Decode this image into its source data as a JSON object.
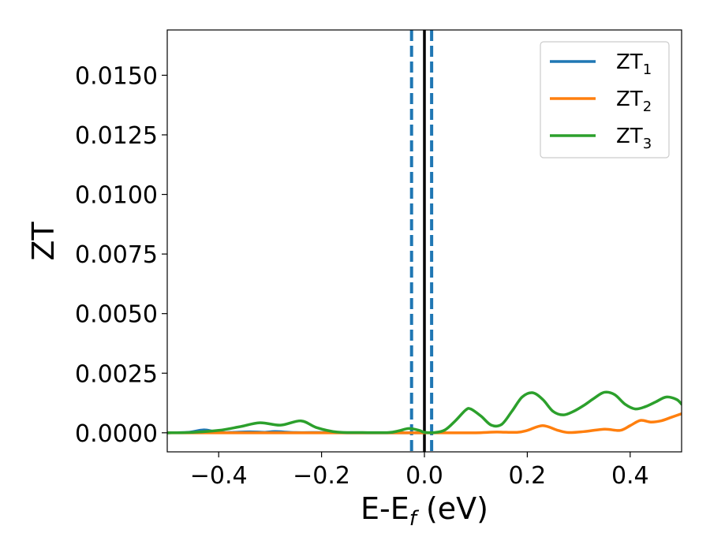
{
  "chart_data": {
    "type": "line",
    "xlabel_main": "E-E",
    "xlabel_sub": "f",
    "xlabel_unit": " (eV)",
    "ylabel": "ZT",
    "xlim": [
      -0.5,
      0.5
    ],
    "ylim": [
      -0.0008,
      0.0169
    ],
    "xticks": [
      -0.4,
      -0.2,
      0.0,
      0.2,
      0.4
    ],
    "xtick_labels": [
      "−0.4",
      "−0.2",
      "0.0",
      "0.2",
      "0.4"
    ],
    "yticks": [
      0.0,
      0.0025,
      0.005,
      0.0075,
      0.01,
      0.0125,
      0.015
    ],
    "ytick_labels": [
      "0.0000",
      "0.0025",
      "0.0050",
      "0.0075",
      "0.0100",
      "0.0125",
      "0.0150"
    ],
    "grid": false,
    "legend_position": "top-right",
    "vlines": [
      {
        "x": -0.025,
        "style": "dashed",
        "color": "#1f77b4"
      },
      {
        "x": 0.0,
        "style": "solid",
        "color": "#000000"
      },
      {
        "x": 0.014,
        "style": "dashed",
        "color": "#1f77b4"
      }
    ],
    "series": [
      {
        "name": "ZT",
        "sub": "1",
        "color": "#1f77b4",
        "x": [
          -0.5,
          -0.46,
          -0.43,
          -0.41,
          -0.39,
          -0.37,
          -0.34,
          -0.31,
          -0.29,
          -0.25,
          -0.2,
          -0.15,
          -0.1,
          -0.05,
          0.0
        ],
        "y": [
          0.0,
          2e-05,
          0.00012,
          6e-05,
          1e-05,
          2e-05,
          4e-05,
          2e-05,
          5e-05,
          1e-05,
          1e-05,
          0.0,
          0.0,
          0.0,
          0.0
        ]
      },
      {
        "name": "ZT",
        "sub": "2",
        "color": "#ff7f0e",
        "x": [
          -0.5,
          -0.3,
          -0.1,
          0.0,
          0.05,
          0.1,
          0.14,
          0.18,
          0.2,
          0.23,
          0.26,
          0.28,
          0.31,
          0.35,
          0.38,
          0.4,
          0.42,
          0.44,
          0.46,
          0.48,
          0.5
        ],
        "y": [
          0.0,
          0.0,
          0.0,
          0.0,
          0.0,
          0.0,
          3e-05,
          2e-05,
          0.0001,
          0.0003,
          0.0001,
          1e-05,
          5e-05,
          0.00015,
          0.0001,
          0.0003,
          0.00052,
          0.00045,
          0.0005,
          0.00065,
          0.0008
        ]
      },
      {
        "name": "ZT",
        "sub": "3",
        "color": "#2ca02c",
        "x": [
          -0.5,
          -0.45,
          -0.4,
          -0.36,
          -0.32,
          -0.28,
          -0.24,
          -0.21,
          -0.17,
          -0.12,
          -0.07,
          -0.05,
          -0.03,
          -0.01,
          0.0,
          0.02,
          0.04,
          0.06,
          0.08,
          0.09,
          0.11,
          0.13,
          0.15,
          0.17,
          0.19,
          0.21,
          0.23,
          0.25,
          0.27,
          0.29,
          0.31,
          0.33,
          0.35,
          0.37,
          0.39,
          0.41,
          0.43,
          0.45,
          0.47,
          0.49,
          0.5
        ],
        "y": [
          0.0,
          2e-05,
          0.0001,
          0.00025,
          0.00042,
          0.00032,
          0.0005,
          0.00022,
          3e-05,
          1e-05,
          1e-05,
          8e-05,
          0.00018,
          0.0001,
          2e-05,
          1e-05,
          0.00012,
          0.0005,
          0.00095,
          0.001,
          0.0007,
          0.00032,
          0.00035,
          0.0009,
          0.0015,
          0.00168,
          0.0014,
          0.0009,
          0.00075,
          0.0009,
          0.00115,
          0.00145,
          0.0017,
          0.0016,
          0.0012,
          0.001,
          0.0011,
          0.0013,
          0.0015,
          0.0014,
          0.0012
        ]
      }
    ]
  }
}
